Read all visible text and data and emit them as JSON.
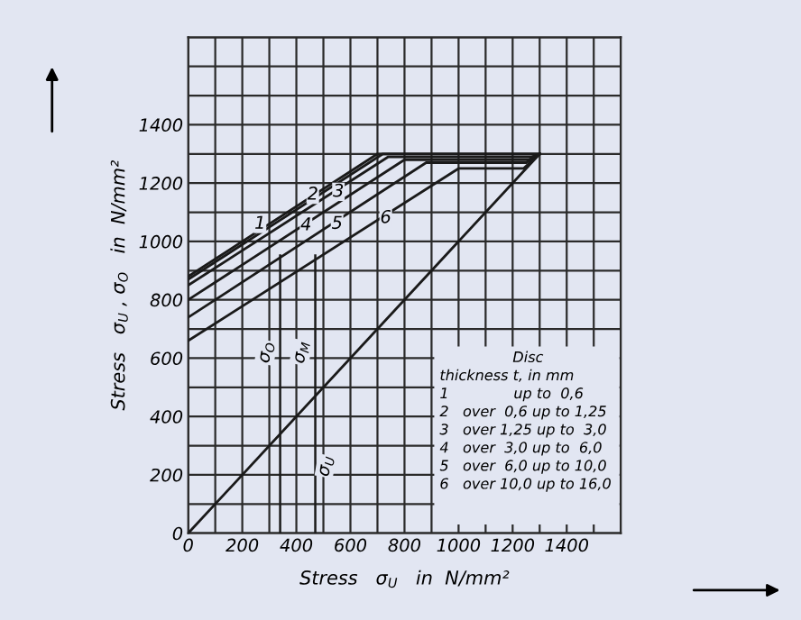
{
  "chart_data": {
    "type": "line",
    "xlabel": "Stress   σ$_{U}$   in  N/mm²",
    "ylabel": "Stress   σ$_{U}$ , σ$_{O}$   in  N/mm²",
    "series": [
      {
        "color": "#1a1a1a",
        "x": [
          0,
          700,
          1300
        ],
        "values": [
          880,
          1300,
          1300
        ]
      },
      {
        "color": "#1a1a1a",
        "x": [
          0,
          720,
          1300
        ],
        "values": [
          870,
          1300,
          1300
        ]
      },
      {
        "color": "#1a1a1a",
        "x": [
          0,
          740,
          1270,
          1300
        ],
        "values": [
          850,
          1290,
          1290,
          1300
        ]
      },
      {
        "color": "#1a1a1a",
        "x": [
          0,
          800,
          1260,
          1300
        ],
        "values": [
          800,
          1280,
          1280,
          1300
        ]
      },
      {
        "color": "#1a1a1a",
        "x": [
          0,
          880,
          1250,
          1300
        ],
        "values": [
          740,
          1270,
          1270,
          1300
        ]
      },
      {
        "color": "#1a1a1a",
        "x": [
          0,
          1000,
          1240,
          1300
        ],
        "values": [
          660,
          1250,
          1250,
          1300
        ]
      },
      {
        "color": "#1a1a1a",
        "x": [
          0,
          1300
        ],
        "values": [
          0,
          1300
        ]
      }
    ],
    "ref_lines": [
      {
        "axis": "x",
        "value": 340,
        "label": "σ$_{O}$",
        "color": "#1a1a1a"
      },
      {
        "axis": "x",
        "value": 470,
        "label": "σ$_{M}$",
        "color": "#1a1a1a"
      }
    ],
    "annotations": [
      {
        "text": "1",
        "x": 245,
        "y": 1060
      },
      {
        "text": "2",
        "x": 440,
        "y": 1160
      },
      {
        "text": "3",
        "x": 535,
        "y": 1170
      },
      {
        "text": "4",
        "x": 415,
        "y": 1055
      },
      {
        "text": "5",
        "x": 530,
        "y": 1060
      },
      {
        "text": "6",
        "x": 710,
        "y": 1080
      },
      {
        "text": "σ$_{U}$",
        "x": 470,
        "y": 230
      },
      "Disc",
      "thickness t, in mm",
      "1              up to  0,6",
      "2   over  0,6 up to 1,25",
      "3   over 1,25 up to  3,0",
      "4   over  3,0 up to  6,0",
      "5   over  6,0 up to 10,0",
      "6   over 10,0 up to 16,0"
    ],
    "xlim": [
      0,
      1600
    ],
    "ylim": [
      0,
      1700
    ],
    "xticks": [
      0,
      {
        "value": 100,
        "label": null
      },
      200,
      {
        "value": 300,
        "label": null
      },
      400,
      {
        "value": 500,
        "label": null
      },
      600,
      {
        "value": 700,
        "label": null
      },
      800,
      {
        "value": 900,
        "label": null
      },
      1000,
      {
        "value": 1100,
        "label": null
      },
      1200,
      {
        "value": 1300,
        "label": null
      },
      1400,
      {
        "value": 1500,
        "label": null
      },
      {
        "value": 1600,
        "label": null
      }
    ],
    "yticks": [
      0,
      {
        "value": 100,
        "label": null
      },
      200,
      {
        "value": 300,
        "label": null
      },
      400,
      {
        "value": 500,
        "label": null
      },
      600,
      {
        "value": 700,
        "label": null
      },
      800,
      {
        "value": 900,
        "label": null
      },
      1000,
      {
        "value": 1100,
        "label": null
      },
      1200,
      {
        "value": 1300,
        "label": null
      },
      1400,
      {
        "value": 1500,
        "label": null
      },
      {
        "value": 1600,
        "label": null
      },
      {
        "value": 1700,
        "label": null
      }
    ],
    "grid": true,
    "marker": "none",
    "line_style": "solid"
  }
}
